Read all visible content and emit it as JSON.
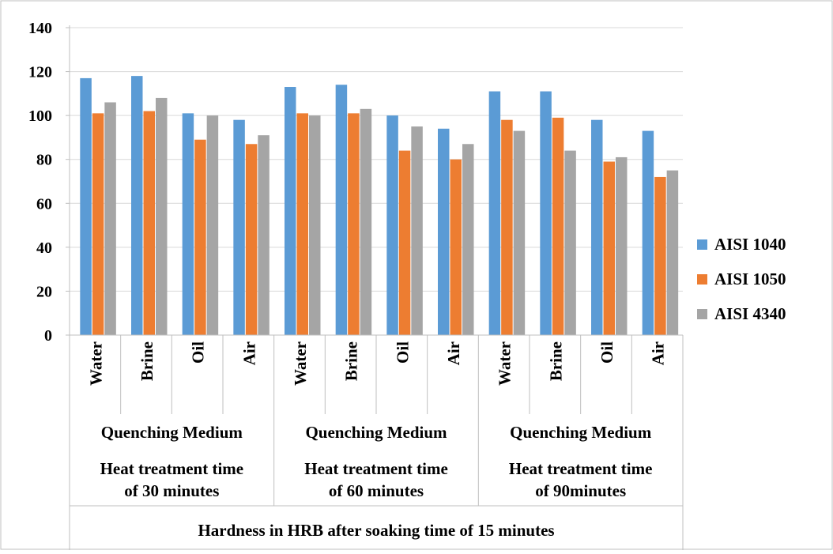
{
  "chart_data": {
    "type": "bar",
    "ylim": [
      0,
      140
    ],
    "yticks": [
      0,
      20,
      40,
      60,
      80,
      100,
      120,
      140
    ],
    "grid": true,
    "legend_position": "right",
    "categories": [
      "Water",
      "Brine",
      "Oil",
      "Air",
      "Water",
      "Brine",
      "Oil",
      "Air",
      "Water",
      "Brine",
      "Oil",
      "Air"
    ],
    "groups": [
      {
        "medium_label": "Quenching Medium",
        "time_label_line1": "Heat treatment time",
        "time_label_line2": "of 30 minutes",
        "span": 4
      },
      {
        "medium_label": "Quenching Medium",
        "time_label_line1": "Heat treatment time",
        "time_label_line2": "of 60 minutes",
        "span": 4
      },
      {
        "medium_label": "Quenching Medium",
        "time_label_line1": "Heat treatment time",
        "time_label_line2": "of 90minutes",
        "span": 4
      }
    ],
    "outer_label": "Hardness in HRB after soaking time of 15 minutes",
    "series": [
      {
        "name": "AISI 1040",
        "color": "#5B9BD5",
        "values": [
          117,
          118,
          101,
          98,
          113,
          114,
          100,
          94,
          111,
          111,
          98,
          93
        ]
      },
      {
        "name": "AISI 1050",
        "color": "#ED7D31",
        "values": [
          101,
          102,
          89,
          87,
          101,
          101,
          84,
          80,
          98,
          99,
          79,
          72
        ]
      },
      {
        "name": "AISI 4340",
        "color": "#A5A5A5",
        "values": [
          106,
          108,
          100,
          91,
          100,
          103,
          95,
          87,
          93,
          84,
          81,
          75
        ]
      }
    ]
  }
}
